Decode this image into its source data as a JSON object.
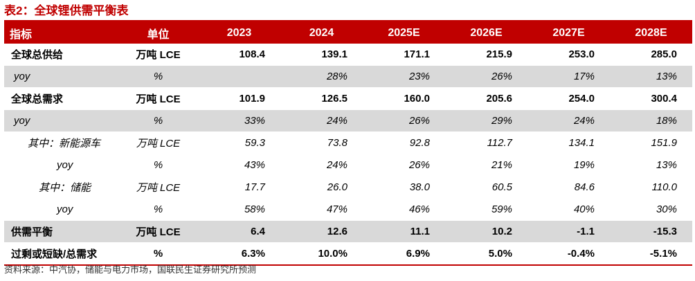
{
  "title": "表2：全球锂供需平衡表",
  "header": {
    "indicator": "指标",
    "unit": "单位",
    "years": [
      "2023",
      "2024",
      "2025E",
      "2026E",
      "2027E",
      "2028E"
    ]
  },
  "rows": [
    {
      "label": "全球总供给",
      "unit": "万吨 LCE",
      "values": [
        "108.4",
        "139.1",
        "171.1",
        "215.9",
        "253.0",
        "285.0"
      ]
    },
    {
      "label": "yoy",
      "unit": "%",
      "values": [
        "",
        "28%",
        "23%",
        "26%",
        "17%",
        "13%"
      ]
    },
    {
      "label": "全球总需求",
      "unit": "万吨 LCE",
      "values": [
        "101.9",
        "126.5",
        "160.0",
        "205.6",
        "254.0",
        "300.4"
      ]
    },
    {
      "label": "yoy",
      "unit": "%",
      "values": [
        "33%",
        "24%",
        "26%",
        "29%",
        "24%",
        "18%"
      ]
    },
    {
      "label": "其中：新能源车",
      "unit": "万吨 LCE",
      "values": [
        "59.3",
        "73.8",
        "92.8",
        "112.7",
        "134.1",
        "151.9"
      ]
    },
    {
      "label": "yoy",
      "unit": "%",
      "values": [
        "43%",
        "24%",
        "26%",
        "21%",
        "19%",
        "13%"
      ]
    },
    {
      "label": "其中：储能",
      "unit": "万吨 LCE",
      "values": [
        "17.7",
        "26.0",
        "38.0",
        "60.5",
        "84.6",
        "110.0"
      ]
    },
    {
      "label": "yoy",
      "unit": "%",
      "values": [
        "58%",
        "47%",
        "46%",
        "59%",
        "40%",
        "30%"
      ]
    },
    {
      "label": "供需平衡",
      "unit": "万吨 LCE",
      "values": [
        "6.4",
        "12.6",
        "11.1",
        "10.2",
        "-1.1",
        "-15.3"
      ]
    },
    {
      "label": "过剩或短缺/总需求",
      "unit": "%",
      "values": [
        "6.3%",
        "10.0%",
        "6.9%",
        "5.0%",
        "-0.4%",
        "-5.1%"
      ]
    }
  ],
  "source": "资料来源：中汽协，储能与电力市场，国联民生证券研究所预测",
  "colors": {
    "accent": "#c00000",
    "shade": "#d9d9d9"
  }
}
